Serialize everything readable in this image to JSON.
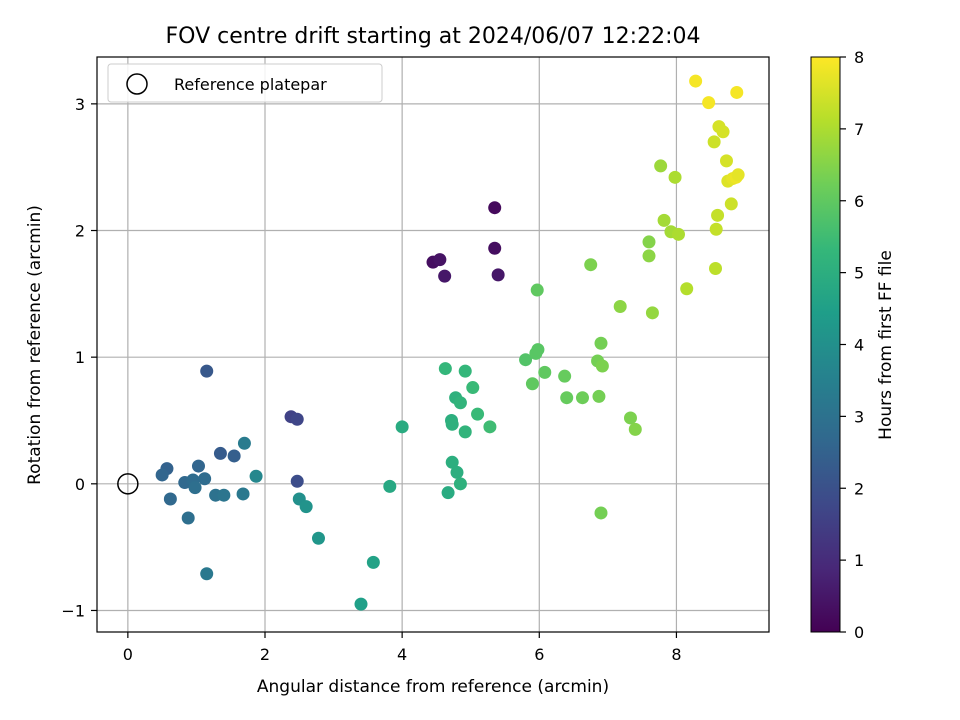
{
  "chart_data": {
    "type": "scatter",
    "title": "FOV centre drift starting at 2024/06/07 12:22:04",
    "xlabel": "Angular distance from reference (arcmin)",
    "ylabel": "Rotation from reference (arcmin)",
    "xlim": [
      -0.45,
      9.35
    ],
    "ylim": [
      -1.17,
      3.37
    ],
    "xticks": [
      0,
      2,
      4,
      6,
      8
    ],
    "xtick_labels": [
      "0",
      "2",
      "4",
      "6",
      "8"
    ],
    "yticks": [
      -1,
      0,
      1,
      2,
      3
    ],
    "ytick_labels": [
      "−1",
      "0",
      "1",
      "2",
      "3"
    ],
    "grid": true,
    "legend": {
      "position": "top-left",
      "label": "Reference platepar"
    },
    "reference_point": {
      "x": 0,
      "y": 0
    },
    "colorbar": {
      "label": "Hours from first FF file",
      "min": 0,
      "max": 8,
      "ticks": [
        0,
        1,
        2,
        3,
        4,
        5,
        6,
        7,
        8
      ],
      "tick_labels": [
        "0",
        "1",
        "2",
        "3",
        "4",
        "5",
        "6",
        "7",
        "8"
      ],
      "colormap": [
        "#440154",
        "#482878",
        "#3e4989",
        "#31688e",
        "#26828e",
        "#1f9e89",
        "#35b779",
        "#6ece58",
        "#b5de2b",
        "#fde725"
      ]
    },
    "points": [
      {
        "x": 5.35,
        "y": 2.18,
        "c": 0.2
      },
      {
        "x": 4.45,
        "y": 1.75,
        "c": 0.3
      },
      {
        "x": 4.55,
        "y": 1.77,
        "c": 0.4
      },
      {
        "x": 5.35,
        "y": 1.86,
        "c": 0.3
      },
      {
        "x": 4.62,
        "y": 1.64,
        "c": 0.5
      },
      {
        "x": 5.4,
        "y": 1.65,
        "c": 0.5
      },
      {
        "x": 2.38,
        "y": 0.53,
        "c": 1.6
      },
      {
        "x": 2.47,
        "y": 0.51,
        "c": 1.7
      },
      {
        "x": 2.47,
        "y": 0.02,
        "c": 1.9
      },
      {
        "x": 1.15,
        "y": 0.89,
        "c": 2.2
      },
      {
        "x": 0.57,
        "y": 0.12,
        "c": 2.5
      },
      {
        "x": 0.5,
        "y": 0.07,
        "c": 2.6
      },
      {
        "x": 0.62,
        "y": -0.12,
        "c": 2.7
      },
      {
        "x": 1.35,
        "y": 0.24,
        "c": 2.3
      },
      {
        "x": 1.55,
        "y": 0.22,
        "c": 2.4
      },
      {
        "x": 1.03,
        "y": 0.14,
        "c": 2.6
      },
      {
        "x": 0.83,
        "y": 0.01,
        "c": 2.7
      },
      {
        "x": 0.95,
        "y": 0.03,
        "c": 2.8
      },
      {
        "x": 1.12,
        "y": 0.04,
        "c": 2.8
      },
      {
        "x": 0.98,
        "y": -0.03,
        "c": 2.9
      },
      {
        "x": 0.88,
        "y": -0.27,
        "c": 2.9
      },
      {
        "x": 1.28,
        "y": -0.09,
        "c": 3.0
      },
      {
        "x": 1.4,
        "y": -0.09,
        "c": 3.1
      },
      {
        "x": 1.68,
        "y": -0.08,
        "c": 3.2
      },
      {
        "x": 1.7,
        "y": 0.32,
        "c": 3.3
      },
      {
        "x": 1.87,
        "y": 0.06,
        "c": 3.7
      },
      {
        "x": 1.15,
        "y": -0.71,
        "c": 3.2
      },
      {
        "x": 2.5,
        "y": -0.12,
        "c": 4.0
      },
      {
        "x": 2.6,
        "y": -0.18,
        "c": 4.1
      },
      {
        "x": 2.78,
        "y": -0.43,
        "c": 4.2
      },
      {
        "x": 3.4,
        "y": -0.95,
        "c": 4.5
      },
      {
        "x": 3.58,
        "y": -0.62,
        "c": 4.6
      },
      {
        "x": 3.82,
        "y": -0.02,
        "c": 4.8
      },
      {
        "x": 4.0,
        "y": 0.45,
        "c": 4.9
      },
      {
        "x": 4.67,
        "y": -0.07,
        "c": 4.9
      },
      {
        "x": 4.73,
        "y": 0.17,
        "c": 5.0
      },
      {
        "x": 4.8,
        "y": 0.09,
        "c": 5.0
      },
      {
        "x": 4.85,
        "y": 0.0,
        "c": 5.1
      },
      {
        "x": 4.72,
        "y": 0.5,
        "c": 5.0
      },
      {
        "x": 4.73,
        "y": 0.47,
        "c": 5.1
      },
      {
        "x": 4.78,
        "y": 0.68,
        "c": 5.1
      },
      {
        "x": 4.85,
        "y": 0.64,
        "c": 5.2
      },
      {
        "x": 4.92,
        "y": 0.41,
        "c": 5.2
      },
      {
        "x": 4.63,
        "y": 0.91,
        "c": 5.3
      },
      {
        "x": 4.92,
        "y": 0.89,
        "c": 5.3
      },
      {
        "x": 5.03,
        "y": 0.76,
        "c": 5.4
      },
      {
        "x": 5.1,
        "y": 0.55,
        "c": 5.4
      },
      {
        "x": 5.28,
        "y": 0.45,
        "c": 5.5
      },
      {
        "x": 5.97,
        "y": 1.53,
        "c": 6.0
      },
      {
        "x": 5.8,
        "y": 0.98,
        "c": 5.8
      },
      {
        "x": 5.95,
        "y": 1.03,
        "c": 5.9
      },
      {
        "x": 5.98,
        "y": 1.06,
        "c": 5.9
      },
      {
        "x": 6.08,
        "y": 0.88,
        "c": 6.0
      },
      {
        "x": 5.9,
        "y": 0.79,
        "c": 6.0
      },
      {
        "x": 6.37,
        "y": 0.85,
        "c": 6.1
      },
      {
        "x": 6.4,
        "y": 0.68,
        "c": 6.1
      },
      {
        "x": 6.63,
        "y": 0.68,
        "c": 6.2
      },
      {
        "x": 6.87,
        "y": 0.69,
        "c": 6.3
      },
      {
        "x": 6.85,
        "y": 0.97,
        "c": 6.3
      },
      {
        "x": 6.9,
        "y": 1.11,
        "c": 6.3
      },
      {
        "x": 6.92,
        "y": 0.93,
        "c": 6.4
      },
      {
        "x": 6.75,
        "y": 1.73,
        "c": 6.4
      },
      {
        "x": 7.18,
        "y": 1.4,
        "c": 6.6
      },
      {
        "x": 6.9,
        "y": -0.23,
        "c": 6.3
      },
      {
        "x": 7.33,
        "y": 0.52,
        "c": 6.4
      },
      {
        "x": 7.4,
        "y": 0.43,
        "c": 6.5
      },
      {
        "x": 7.6,
        "y": 1.91,
        "c": 6.5
      },
      {
        "x": 7.6,
        "y": 1.8,
        "c": 6.6
      },
      {
        "x": 7.65,
        "y": 1.35,
        "c": 6.7
      },
      {
        "x": 7.77,
        "y": 2.51,
        "c": 6.8
      },
      {
        "x": 7.82,
        "y": 2.08,
        "c": 6.9
      },
      {
        "x": 7.92,
        "y": 1.99,
        "c": 6.9
      },
      {
        "x": 7.98,
        "y": 2.42,
        "c": 7.0
      },
      {
        "x": 8.03,
        "y": 1.97,
        "c": 7.0
      },
      {
        "x": 8.15,
        "y": 1.54,
        "c": 7.1
      },
      {
        "x": 8.57,
        "y": 1.7,
        "c": 7.2
      },
      {
        "x": 8.58,
        "y": 2.01,
        "c": 7.3
      },
      {
        "x": 8.6,
        "y": 2.12,
        "c": 7.3
      },
      {
        "x": 8.55,
        "y": 2.7,
        "c": 7.4
      },
      {
        "x": 8.62,
        "y": 2.82,
        "c": 7.5
      },
      {
        "x": 8.68,
        "y": 2.78,
        "c": 7.5
      },
      {
        "x": 8.73,
        "y": 2.55,
        "c": 7.5
      },
      {
        "x": 8.75,
        "y": 2.39,
        "c": 7.6
      },
      {
        "x": 8.8,
        "y": 2.21,
        "c": 7.4
      },
      {
        "x": 8.82,
        "y": 2.41,
        "c": 7.7
      },
      {
        "x": 8.87,
        "y": 2.42,
        "c": 7.8
      },
      {
        "x": 8.9,
        "y": 2.44,
        "c": 7.7
      },
      {
        "x": 8.28,
        "y": 3.18,
        "c": 7.9
      },
      {
        "x": 8.47,
        "y": 3.01,
        "c": 7.9
      },
      {
        "x": 8.88,
        "y": 3.09,
        "c": 7.9
      }
    ]
  }
}
